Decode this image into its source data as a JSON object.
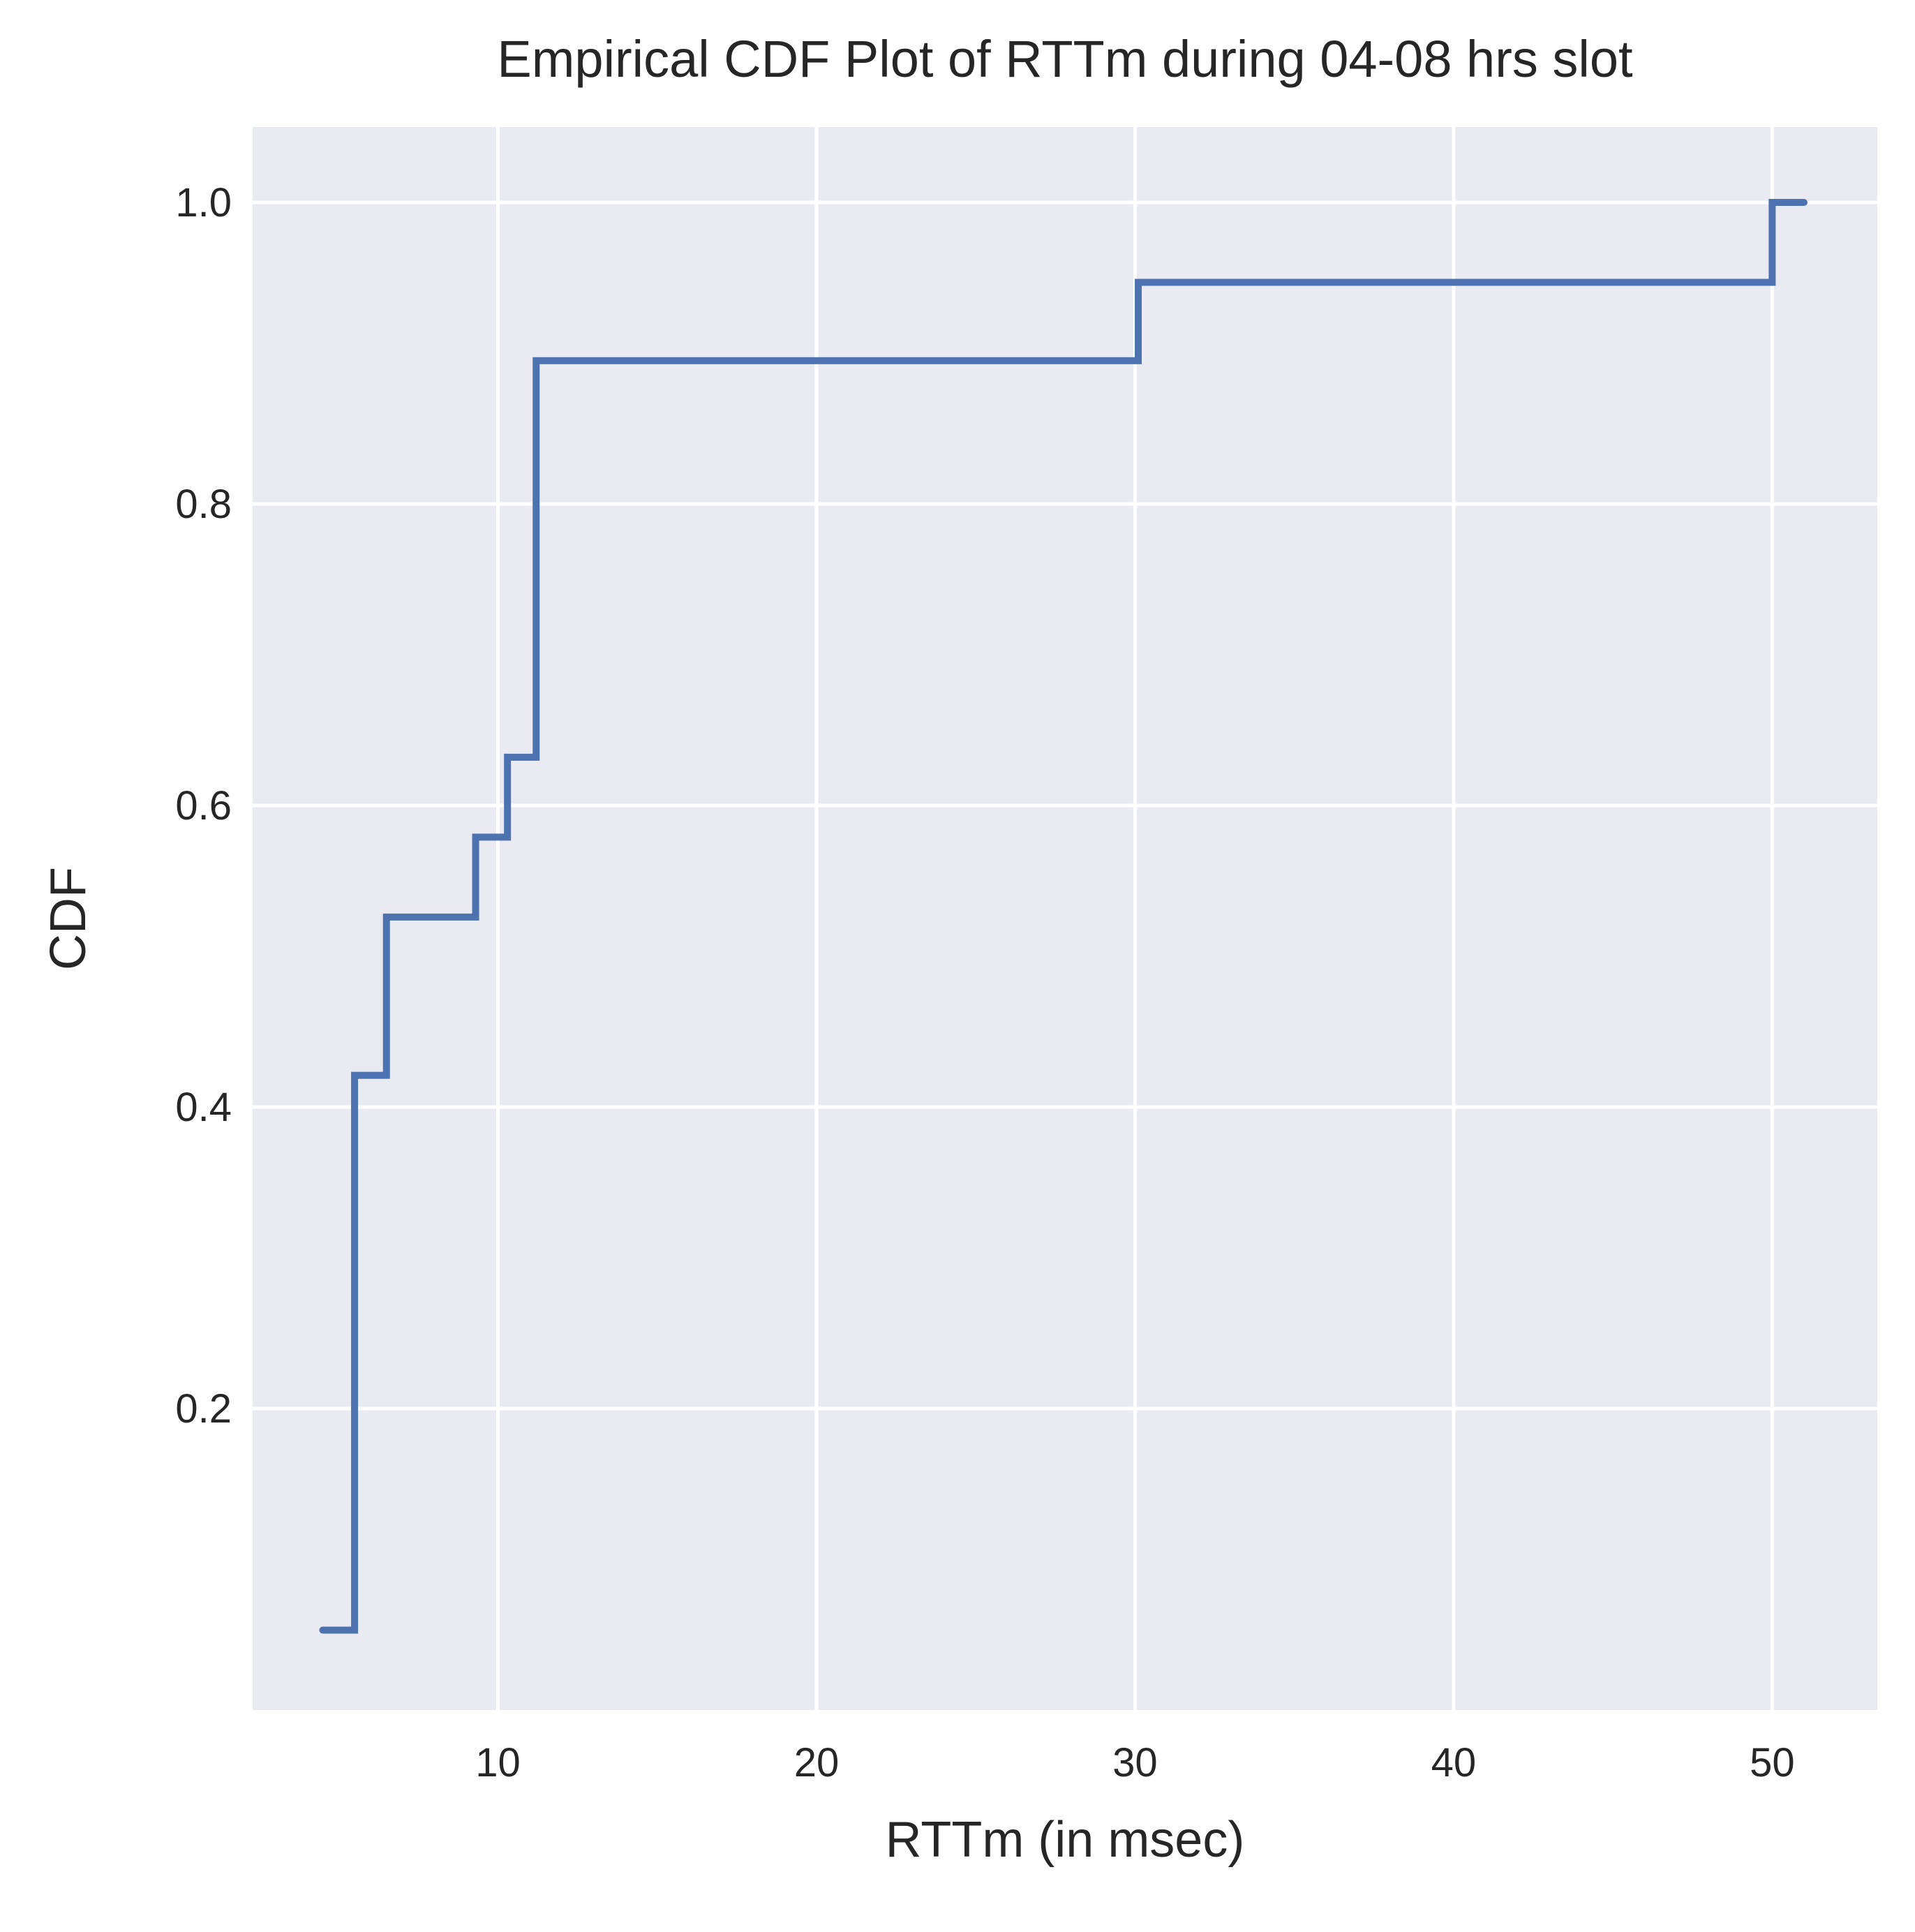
{
  "chart_data": {
    "type": "line",
    "style": "step-post",
    "title": "Empirical CDF Plot of RTTm during 04-08 hrs slot",
    "xlabel": "RTTm (in msec)",
    "ylabel": "CDF",
    "xlim": [
      2.3,
      53.3
    ],
    "ylim": [
      0.0,
      1.05
    ],
    "xticks": [
      10,
      20,
      30,
      40,
      50
    ],
    "xtick_labels": [
      "10",
      "20",
      "30",
      "40",
      "50"
    ],
    "yticks": [
      0.2,
      0.4,
      0.6,
      0.8,
      1.0
    ],
    "ytick_labels": [
      "0.2",
      "0.4",
      "0.6",
      "0.8",
      "1.0"
    ],
    "grid": true,
    "background": "#eaeaf2",
    "grid_color": "#ffffff",
    "series": [
      {
        "color": "#4c72b0",
        "x": [
          4.5,
          5.5,
          6.5,
          9.3,
          10.3,
          11.2,
          30.1,
          50.0,
          51.0
        ],
        "y": [
          0.053,
          0.421,
          0.526,
          0.579,
          0.632,
          0.895,
          0.947,
          1.0,
          1.0
        ]
      }
    ]
  }
}
